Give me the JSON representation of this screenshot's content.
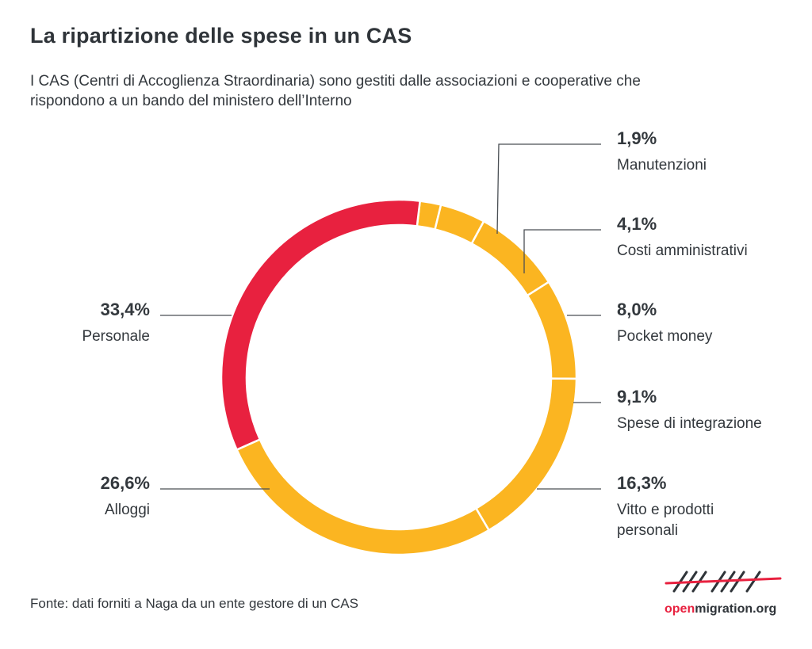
{
  "title": "La ripartizione delle spese in un CAS",
  "subtitle": "I CAS (Centri di Accoglienza Straordinaria) sono gestiti dalle associazioni e cooperative che rispondono a un bando del ministero dell’Interno",
  "source": "Fonte: dati forniti a Naga da un ente gestore di un CAS",
  "logo": {
    "part1": "open",
    "part2": "migration.org"
  },
  "colors": {
    "highlight": "#e8213f",
    "other": "#fbb521",
    "text": "#33383d"
  },
  "chart_data": {
    "type": "pie",
    "style": "donut",
    "unit": "%",
    "slices": [
      {
        "label": "Manutenzioni",
        "value": 1.9,
        "display": "1,9%",
        "color": "#fbb521"
      },
      {
        "label": "Costi amministrativi",
        "value": 4.1,
        "display": "4,1%",
        "color": "#fbb521"
      },
      {
        "label": "Pocket money",
        "value": 8.0,
        "display": "8,0%",
        "color": "#fbb521"
      },
      {
        "label": "Spese di integrazione",
        "value": 9.1,
        "display": "9,1%",
        "color": "#fbb521"
      },
      {
        "label": "Vitto e prodotti personali",
        "value": 16.3,
        "display": "16,3%",
        "color": "#fbb521"
      },
      {
        "label": "Alloggi",
        "value": 26.6,
        "display": "26,6%",
        "color": "#fbb521"
      },
      {
        "label": "Personale",
        "value": 33.4,
        "display": "33,4%",
        "color": "#e8213f"
      }
    ]
  }
}
